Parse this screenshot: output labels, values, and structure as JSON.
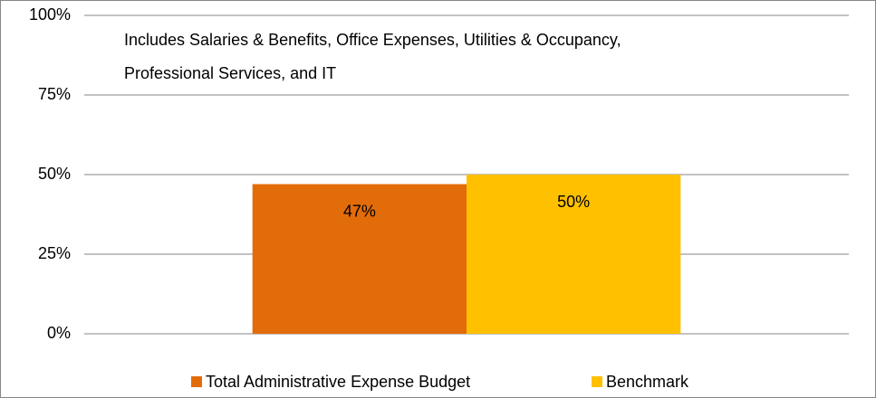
{
  "chart_data": {
    "type": "bar",
    "annotation": [
      "Includes Salaries & Benefits, Office Expenses, Utilities & Occupancy,",
      "Professional Services, and IT"
    ],
    "categories": [
      null
    ],
    "series": [
      {
        "name": "Total Administrative Expense Budget",
        "color": "#e36c0a",
        "values": [
          47
        ],
        "value_labels": [
          "47%"
        ]
      },
      {
        "name": "Benchmark",
        "color": "#ffc000",
        "values": [
          50
        ],
        "value_labels": [
          "50%"
        ]
      }
    ],
    "ylim": [
      0,
      100
    ],
    "yticks": [
      {
        "value": 0,
        "label": "0%"
      },
      {
        "value": 25,
        "label": "25%"
      },
      {
        "value": 50,
        "label": "50%"
      },
      {
        "value": 75,
        "label": "75%"
      },
      {
        "value": 100,
        "label": "100%"
      }
    ],
    "grid": true,
    "legend": "bottom"
  }
}
